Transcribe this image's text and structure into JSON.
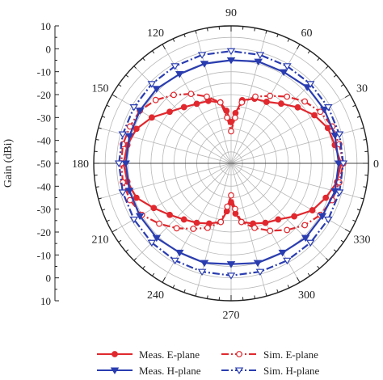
{
  "chart_data": {
    "type": "polar-line",
    "title": "",
    "ylabel": "Gain (dBi)",
    "radial_range": [
      -50,
      10
    ],
    "radial_ticks": [
      10,
      0,
      -10,
      -20,
      -30,
      -40,
      -50
    ],
    "angle_ticks": [
      0,
      30,
      60,
      90,
      120,
      150,
      180,
      210,
      240,
      270,
      300,
      330
    ],
    "grid": true,
    "legend": "bottom",
    "series": [
      {
        "name": "Meas. E-plane",
        "color": "#e0282e",
        "line": "solid",
        "marker": "filled-circle",
        "points": [
          [
            0,
            -2
          ],
          [
            10,
            -4
          ],
          [
            20,
            -5
          ],
          [
            30,
            -8
          ],
          [
            40,
            -12
          ],
          [
            50,
            -16
          ],
          [
            60,
            -19
          ],
          [
            70,
            -20
          ],
          [
            80,
            -22
          ],
          [
            85,
            -28
          ],
          [
            90,
            -32
          ],
          [
            95,
            -27
          ],
          [
            100,
            -23
          ],
          [
            110,
            -21
          ],
          [
            120,
            -20
          ],
          [
            130,
            -18
          ],
          [
            140,
            -15
          ],
          [
            150,
            -10
          ],
          [
            160,
            -6
          ],
          [
            170,
            -4
          ],
          [
            180,
            -3
          ],
          [
            190,
            -4
          ],
          [
            200,
            -6
          ],
          [
            210,
            -11
          ],
          [
            220,
            -15
          ],
          [
            230,
            -18
          ],
          [
            240,
            -20
          ],
          [
            250,
            -22
          ],
          [
            260,
            -24
          ],
          [
            265,
            -29
          ],
          [
            270,
            -33
          ],
          [
            275,
            -28
          ],
          [
            280,
            -24
          ],
          [
            290,
            -22
          ],
          [
            300,
            -20
          ],
          [
            310,
            -18
          ],
          [
            320,
            -14
          ],
          [
            330,
            -9
          ],
          [
            340,
            -6
          ],
          [
            350,
            -3
          ],
          [
            360,
            -2
          ]
        ]
      },
      {
        "name": "Sim. E-plane",
        "color": "#e0282e",
        "line": "dashdot",
        "marker": "open-circle",
        "points": [
          [
            0,
            -1
          ],
          [
            10,
            -2
          ],
          [
            20,
            -3
          ],
          [
            30,
            -5
          ],
          [
            40,
            -8
          ],
          [
            50,
            -12
          ],
          [
            60,
            -16
          ],
          [
            70,
            -19
          ],
          [
            80,
            -23
          ],
          [
            85,
            -30
          ],
          [
            90,
            -36
          ],
          [
            95,
            -30
          ],
          [
            100,
            -23
          ],
          [
            110,
            -19
          ],
          [
            120,
            -15
          ],
          [
            130,
            -11
          ],
          [
            140,
            -7
          ],
          [
            150,
            -4
          ],
          [
            160,
            -3
          ],
          [
            170,
            -2
          ],
          [
            180,
            -2
          ],
          [
            190,
            -2
          ],
          [
            200,
            -3
          ],
          [
            210,
            -5
          ],
          [
            220,
            -9
          ],
          [
            230,
            -13
          ],
          [
            240,
            -17
          ],
          [
            250,
            -20
          ],
          [
            260,
            -24
          ],
          [
            265,
            -31
          ],
          [
            270,
            -36
          ],
          [
            275,
            -30
          ],
          [
            280,
            -24
          ],
          [
            290,
            -20
          ],
          [
            300,
            -16
          ],
          [
            310,
            -12
          ],
          [
            320,
            -8
          ],
          [
            330,
            -5
          ],
          [
            340,
            -3
          ],
          [
            350,
            -2
          ],
          [
            360,
            -1
          ]
        ]
      },
      {
        "name": "Meas. H-plane",
        "color": "#2a3db0",
        "line": "solid",
        "marker": "filled-triangle",
        "points": [
          [
            0,
            -3
          ],
          [
            15,
            -3
          ],
          [
            30,
            -3
          ],
          [
            45,
            -3
          ],
          [
            60,
            -4
          ],
          [
            75,
            -4
          ],
          [
            90,
            -5
          ],
          [
            105,
            -5
          ],
          [
            120,
            -5
          ],
          [
            135,
            -4
          ],
          [
            150,
            -4
          ],
          [
            165,
            -4
          ],
          [
            180,
            -4
          ],
          [
            195,
            -4
          ],
          [
            210,
            -4
          ],
          [
            225,
            -4
          ],
          [
            240,
            -5
          ],
          [
            255,
            -5
          ],
          [
            270,
            -6
          ],
          [
            285,
            -5
          ],
          [
            300,
            -5
          ],
          [
            315,
            -4
          ],
          [
            330,
            -4
          ],
          [
            345,
            -3
          ],
          [
            360,
            -3
          ]
        ]
      },
      {
        "name": "Sim. H-plane",
        "color": "#2a3db0",
        "line": "dashdot",
        "marker": "open-triangle",
        "points": [
          [
            0,
            -1
          ],
          [
            15,
            -1
          ],
          [
            30,
            -1
          ],
          [
            45,
            -1
          ],
          [
            60,
            -1
          ],
          [
            75,
            -1
          ],
          [
            90,
            -1
          ],
          [
            105,
            -1
          ],
          [
            120,
            -1
          ],
          [
            135,
            -1
          ],
          [
            150,
            -1
          ],
          [
            165,
            -1
          ],
          [
            180,
            -1
          ],
          [
            195,
            -1
          ],
          [
            210,
            -1
          ],
          [
            225,
            -1
          ],
          [
            240,
            -1
          ],
          [
            255,
            -1
          ],
          [
            270,
            -1
          ],
          [
            285,
            -1
          ],
          [
            300,
            -1
          ],
          [
            315,
            -1
          ],
          [
            330,
            -1
          ],
          [
            345,
            -1
          ],
          [
            360,
            -1
          ]
        ]
      }
    ]
  }
}
